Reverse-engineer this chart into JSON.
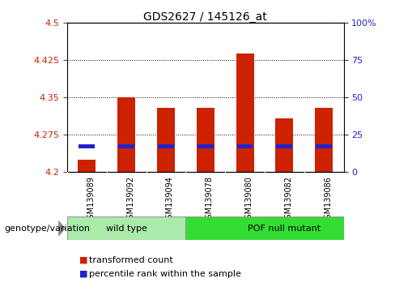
{
  "title": "GDS2627 / 145126_at",
  "samples": [
    "GSM139089",
    "GSM139092",
    "GSM139094",
    "GSM139078",
    "GSM139080",
    "GSM139082",
    "GSM139086"
  ],
  "group_labels": [
    "wild type",
    "POF null mutant"
  ],
  "wt_indices": [
    0,
    1,
    2
  ],
  "pof_indices": [
    3,
    4,
    5,
    6
  ],
  "bar_base": 4.2,
  "red_tops": [
    4.225,
    4.351,
    4.33,
    4.33,
    4.438,
    4.308,
    4.33
  ],
  "blue_bot": [
    4.248,
    4.248,
    4.248,
    4.248,
    4.248,
    4.248,
    4.248
  ],
  "blue_top": [
    4.256,
    4.256,
    4.256,
    4.256,
    4.256,
    4.256,
    4.256
  ],
  "red_color": "#cc2200",
  "blue_color": "#2222cc",
  "ylim_left": [
    4.2,
    4.5
  ],
  "yticks_left": [
    4.2,
    4.275,
    4.35,
    4.425,
    4.5
  ],
  "ytick_labels_left": [
    "4.2",
    "4.275",
    "4.35",
    "4.425",
    "4.5"
  ],
  "ylim_right": [
    0,
    100
  ],
  "yticks_right": [
    0,
    25,
    50,
    75,
    100
  ],
  "ytick_labels_right": [
    "0",
    "25",
    "50",
    "75",
    "100%"
  ],
  "bar_width": 0.45,
  "label_red": "transformed count",
  "label_blue": "percentile rank within the sample",
  "genotype_label": "genotype/variation",
  "wt_color": "#aaeaaa",
  "pof_color": "#33dd33",
  "tick_bg": "#cccccc"
}
